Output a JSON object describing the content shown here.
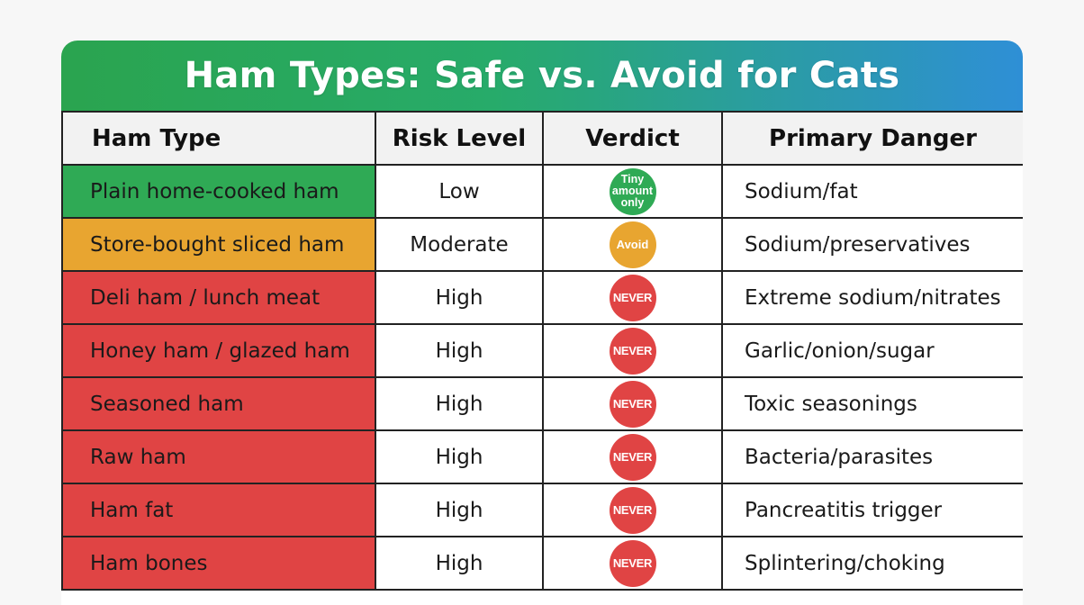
{
  "title": "Ham Types: Safe vs. Avoid for Cats",
  "headers": {
    "type": "Ham Type",
    "risk": "Risk Level",
    "verdict": "Verdict",
    "danger": "Primary Danger"
  },
  "colors": {
    "green": "#2faa55",
    "amber": "#e8a530",
    "red": "#e04444"
  },
  "rows": [
    {
      "type": "Plain home-cooked ham",
      "risk": "Low",
      "verdict": "Tiny amount only",
      "danger": "Sodium/fat",
      "color": "green"
    },
    {
      "type": "Store-bought sliced ham",
      "risk": "Moderate",
      "verdict": "Avoid",
      "danger": "Sodium/preservatives",
      "color": "amber"
    },
    {
      "type": "Deli ham / lunch meat",
      "risk": "High",
      "verdict": "NEVER",
      "danger": "Extreme sodium/nitrates",
      "color": "red"
    },
    {
      "type": "Honey ham / glazed ham",
      "risk": "High",
      "verdict": "NEVER",
      "danger": "Garlic/onion/sugar",
      "color": "red"
    },
    {
      "type": "Seasoned ham",
      "risk": "High",
      "verdict": "NEVER",
      "danger": "Toxic seasonings",
      "color": "red"
    },
    {
      "type": "Raw ham",
      "risk": "High",
      "verdict": "NEVER",
      "danger": "Bacteria/parasites",
      "color": "red"
    },
    {
      "type": "Ham fat",
      "risk": "High",
      "verdict": "NEVER",
      "danger": "Pancreatitis trigger",
      "color": "red"
    },
    {
      "type": "Ham bones",
      "risk": "High",
      "verdict": "NEVER",
      "danger": "Splintering/choking",
      "color": "red"
    }
  ]
}
